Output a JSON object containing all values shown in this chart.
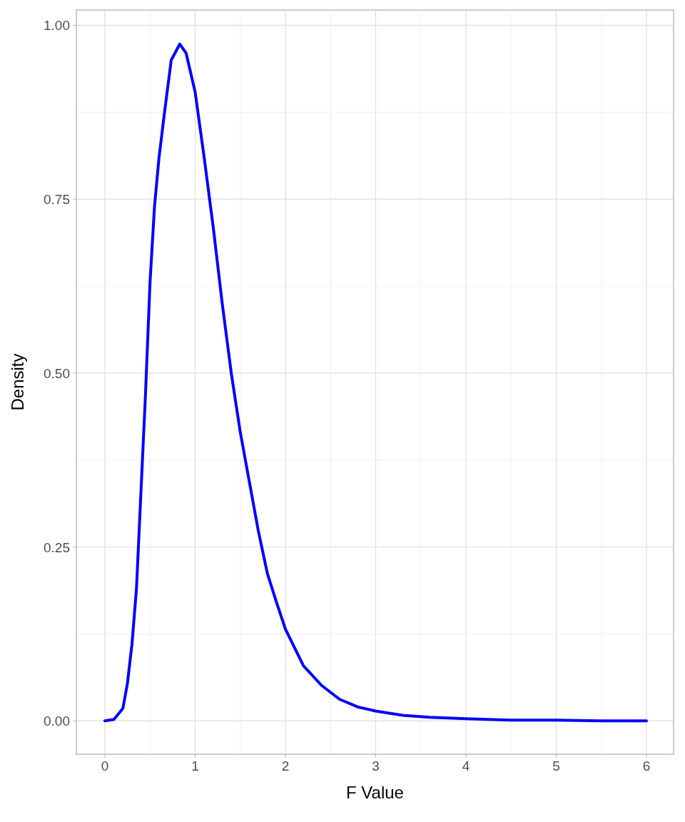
{
  "chart_data": {
    "type": "line",
    "xlabel": "F Value",
    "ylabel": "Density",
    "x": [
      0,
      0.1,
      0.2,
      0.25,
      0.3,
      0.35,
      0.4,
      0.45,
      0.5,
      0.55,
      0.6,
      0.66,
      0.735,
      0.83,
      0.9,
      1.0,
      1.1,
      1.2,
      1.3,
      1.4,
      1.5,
      1.6,
      1.7,
      1.8,
      1.9,
      2.0,
      2.2,
      2.4,
      2.6,
      2.8,
      3.0,
      3.3,
      3.6,
      4.0,
      4.5,
      5.0,
      5.5,
      6.0
    ],
    "series": [
      {
        "color": "#0000ff",
        "values": [
          0,
          0.002,
          0.018,
          0.054,
          0.11,
          0.19,
          0.33,
          0.47,
          0.63,
          0.74,
          0.81,
          0.874,
          0.95,
          0.973,
          0.96,
          0.904,
          0.81,
          0.71,
          0.6,
          0.5,
          0.415,
          0.344,
          0.273,
          0.212,
          0.171,
          0.132,
          0.079,
          0.051,
          0.031,
          0.02,
          0.014,
          0.008,
          0.005,
          0.003,
          0.001,
          0.001,
          0,
          0
        ]
      }
    ],
    "xlim": [
      -0.316,
      6.3
    ],
    "xticks": [
      0,
      1,
      2,
      3,
      4,
      5,
      6
    ],
    "ylim": [
      -0.048,
      1.022
    ],
    "yticks": [
      {
        "value": 0,
        "label": "0.00"
      },
      {
        "value": 0.25,
        "label": "0.25"
      },
      {
        "value": 0.5,
        "label": "0.50"
      },
      {
        "value": 0.75,
        "label": "0.75"
      },
      {
        "value": 1,
        "label": "1.00"
      }
    ],
    "grid": true,
    "line_style": "solid",
    "marker": "none"
  }
}
